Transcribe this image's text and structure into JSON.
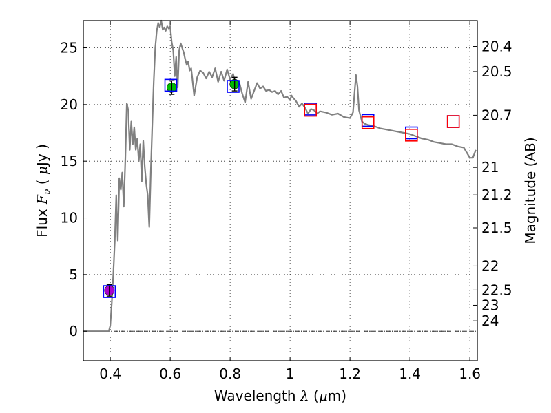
{
  "chart_data": {
    "type": "scatter",
    "xlabel": {
      "prefix": "Wavelength  ",
      "symbol": "λ",
      "unit_open": " (",
      "unit_mu": "μ",
      "unit_rest": "m)"
    },
    "ylabel": {
      "prefix": "Flux  ",
      "symbol": "F",
      "subscript": "ν",
      "unit_open": "  ( ",
      "unit_mu": "μ",
      "unit_rest": "Jy )"
    },
    "ylabel_right": "Magnitude (AB)",
    "xlim": [
      0.31,
      1.625
    ],
    "ylim": [
      -2.6,
      27.4
    ],
    "x_ticks": [
      {
        "value": 0.4,
        "label": "0.4"
      },
      {
        "value": 0.6,
        "label": "0.6"
      },
      {
        "value": 0.8,
        "label": "0.8"
      },
      {
        "value": 1.0,
        "label": "1"
      },
      {
        "value": 1.2,
        "label": "1.2"
      },
      {
        "value": 1.4,
        "label": "1.4"
      },
      {
        "value": 1.6,
        "label": "1.6"
      }
    ],
    "y_ticks": [
      {
        "value": 0,
        "label": "0"
      },
      {
        "value": 5,
        "label": "5"
      },
      {
        "value": 10,
        "label": "10"
      },
      {
        "value": 15,
        "label": "15"
      },
      {
        "value": 20,
        "label": "20"
      },
      {
        "value": 25,
        "label": "25"
      }
    ],
    "mag_ticks": [
      {
        "value": 20.4,
        "label": "20.4"
      },
      {
        "value": 20.5,
        "label": "20.5"
      },
      {
        "value": 20.7,
        "label": "20.7"
      },
      {
        "value": 21,
        "label": "21"
      },
      {
        "value": 21.2,
        "label": "21.2"
      },
      {
        "value": 21.5,
        "label": "21.5"
      },
      {
        "value": 22,
        "label": "22"
      },
      {
        "value": 22.5,
        "label": "22.5"
      },
      {
        "value": 23,
        "label": "23"
      },
      {
        "value": 24,
        "label": "24"
      }
    ],
    "zero_line": 0,
    "model_spectrum": {
      "color": "#808080",
      "x": [
        0.31,
        0.39,
        0.395,
        0.4,
        0.405,
        0.41,
        0.415,
        0.42,
        0.425,
        0.43,
        0.435,
        0.44,
        0.445,
        0.45,
        0.455,
        0.46,
        0.465,
        0.47,
        0.475,
        0.48,
        0.485,
        0.49,
        0.495,
        0.5,
        0.505,
        0.51,
        0.515,
        0.52,
        0.525,
        0.53,
        0.535,
        0.54,
        0.545,
        0.55,
        0.555,
        0.56,
        0.565,
        0.57,
        0.575,
        0.58,
        0.585,
        0.59,
        0.595,
        0.6,
        0.605,
        0.61,
        0.615,
        0.62,
        0.625,
        0.63,
        0.635,
        0.64,
        0.645,
        0.65,
        0.655,
        0.66,
        0.665,
        0.67,
        0.68,
        0.69,
        0.7,
        0.71,
        0.72,
        0.73,
        0.74,
        0.75,
        0.76,
        0.77,
        0.78,
        0.79,
        0.8,
        0.81,
        0.82,
        0.83,
        0.84,
        0.85,
        0.86,
        0.87,
        0.88,
        0.89,
        0.9,
        0.91,
        0.92,
        0.93,
        0.94,
        0.95,
        0.96,
        0.97,
        0.98,
        0.99,
        1.0,
        1.005,
        1.01,
        1.02,
        1.03,
        1.04,
        1.05,
        1.06,
        1.07,
        1.08,
        1.09,
        1.1,
        1.12,
        1.14,
        1.16,
        1.18,
        1.2,
        1.21,
        1.22,
        1.225,
        1.23,
        1.24,
        1.25,
        1.26,
        1.28,
        1.3,
        1.32,
        1.34,
        1.36,
        1.38,
        1.4,
        1.42,
        1.44,
        1.46,
        1.48,
        1.5,
        1.52,
        1.54,
        1.56,
        1.58,
        1.6,
        1.61,
        1.62
      ],
      "y": [
        0,
        0,
        0,
        0.5,
        2.5,
        5,
        8,
        12,
        8,
        13.5,
        12.5,
        14,
        11,
        15,
        20.1,
        19.5,
        16,
        18.5,
        16.5,
        18,
        16,
        17,
        15,
        16.5,
        13.2,
        16.8,
        14.5,
        13,
        12,
        9.2,
        14,
        18,
        22,
        25,
        26.5,
        27.2,
        26.8,
        27.4,
        26.6,
        26.8,
        26.5,
        26.9,
        26.7,
        26.9,
        25.5,
        24.8,
        22.5,
        24.2,
        21.5,
        24.8,
        25.4,
        25,
        24.6,
        24,
        23.5,
        23.8,
        23,
        23.2,
        20.8,
        22.4,
        23,
        22.8,
        22.3,
        22.9,
        22.4,
        23.2,
        22,
        22.9,
        22.1,
        23.1,
        22.2,
        22.7,
        21.6,
        22,
        21,
        20.2,
        22,
        20.5,
        21.2,
        21.9,
        21.4,
        21.6,
        21.2,
        21.3,
        21.1,
        21.2,
        20.9,
        21.2,
        20.6,
        20.7,
        20.4,
        20.8,
        20.6,
        20.3,
        19.8,
        20.1,
        19.7,
        19.2,
        19.6,
        19.5,
        19.2,
        19.4,
        19.3,
        19.1,
        19.2,
        18.9,
        18.8,
        19.3,
        22.6,
        21.6,
        19.5,
        18.5,
        18.3,
        18.2,
        18.1,
        17.9,
        17.8,
        17.7,
        17.6,
        17.5,
        17.4,
        17.2,
        17,
        16.9,
        16.7,
        16.6,
        16.5,
        16.5,
        16.3,
        16.2,
        15.3,
        15.3,
        16
      ]
    },
    "series": [
      {
        "name": "photometry-purple",
        "marker": "circle",
        "color": "#aa00cc",
        "points": [
          {
            "x": 0.397,
            "y": 3.6,
            "err": 0.5
          }
        ]
      },
      {
        "name": "photometry-green",
        "marker": "circle",
        "color": "#00bb00",
        "points": [
          {
            "x": 0.605,
            "y": 21.5,
            "err": 0.6
          },
          {
            "x": 0.815,
            "y": 21.8,
            "err": 0.6
          }
        ]
      },
      {
        "name": "model-photometry-blue",
        "marker": "square",
        "color": "#0000ff",
        "points": [
          {
            "x": 0.397,
            "y": 3.5
          },
          {
            "x": 0.602,
            "y": 21.7
          },
          {
            "x": 0.81,
            "y": 21.6
          },
          {
            "x": 1.068,
            "y": 19.6
          },
          {
            "x": 1.26,
            "y": 18.6
          },
          {
            "x": 1.405,
            "y": 17.5
          },
          {
            "x": 1.545,
            "y": 18.5
          }
        ]
      },
      {
        "name": "observed-photometry-red",
        "marker": "square",
        "color": "#ff0000",
        "points": [
          {
            "x": 1.068,
            "y": 19.5
          },
          {
            "x": 1.26,
            "y": 18.4
          },
          {
            "x": 1.405,
            "y": 17.3
          },
          {
            "x": 1.545,
            "y": 18.5
          }
        ]
      }
    ]
  }
}
